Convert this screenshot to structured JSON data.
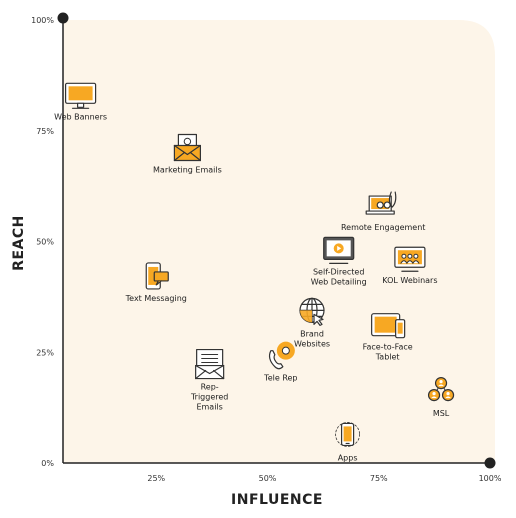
{
  "chart_data": {
    "type": "scatter",
    "title": "",
    "xlabel": "INFLUENCE",
    "ylabel": "REACH",
    "xlim": [
      0,
      100
    ],
    "ylim": [
      0,
      100
    ],
    "x_ticks": [
      {
        "value": 25,
        "label": "25%"
      },
      {
        "value": 50,
        "label": "50%"
      },
      {
        "value": 75,
        "label": "75%"
      },
      {
        "value": 100,
        "label": "100%"
      }
    ],
    "y_ticks": [
      {
        "value": 0,
        "label": "0%"
      },
      {
        "value": 25,
        "label": "25%"
      },
      {
        "value": 50,
        "label": "50%"
      },
      {
        "value": 75,
        "label": "75%"
      },
      {
        "value": 100,
        "label": "100%"
      }
    ],
    "grid": false,
    "colors": {
      "background": "#FDF5E9",
      "accent": "#F7A823",
      "stroke": "#333333",
      "axis": "#222222"
    },
    "points": [
      {
        "name": "web-banners",
        "label": [
          "Web Banners"
        ],
        "x": 8,
        "y": 83,
        "icon": "monitor-icon"
      },
      {
        "name": "marketing-emails",
        "label": [
          "Marketing Emails"
        ],
        "x": 32,
        "y": 71,
        "icon": "email-icon"
      },
      {
        "name": "remote-engagement",
        "label": [
          "Remote Engagement"
        ],
        "x": 76,
        "y": 58,
        "icon": "laptop-stethoscope-icon"
      },
      {
        "name": "self-directed-web-detailing",
        "label": [
          "Self-Directed",
          "Web Detailing"
        ],
        "x": 66,
        "y": 48,
        "icon": "video-monitor-icon"
      },
      {
        "name": "kol-webinars",
        "label": [
          "KOL Webinars"
        ],
        "x": 82,
        "y": 46,
        "icon": "webinar-icon"
      },
      {
        "name": "text-messaging",
        "label": [
          "Text Messaging"
        ],
        "x": 25,
        "y": 42,
        "icon": "phone-chat-icon"
      },
      {
        "name": "brand-websites",
        "label": [
          "Brand",
          "Websites"
        ],
        "x": 60,
        "y": 34,
        "icon": "globe-icon"
      },
      {
        "name": "face-to-face-tablet",
        "label": [
          "Face-to-Face",
          "Tablet"
        ],
        "x": 77,
        "y": 31,
        "icon": "tablet-icon"
      },
      {
        "name": "rep-triggered-emails",
        "label": [
          "Rep-",
          "Triggered",
          "Emails"
        ],
        "x": 37,
        "y": 22,
        "icon": "inbox-icon"
      },
      {
        "name": "tele-rep",
        "label": [
          "Tele Rep"
        ],
        "x": 53,
        "y": 24,
        "icon": "tele-rep-icon"
      },
      {
        "name": "msl",
        "label": [
          "MSL"
        ],
        "x": 89,
        "y": 16,
        "icon": "people-network-icon"
      },
      {
        "name": "apps",
        "label": [
          "Apps"
        ],
        "x": 68,
        "y": 6,
        "icon": "mobile-app-icon"
      }
    ]
  }
}
